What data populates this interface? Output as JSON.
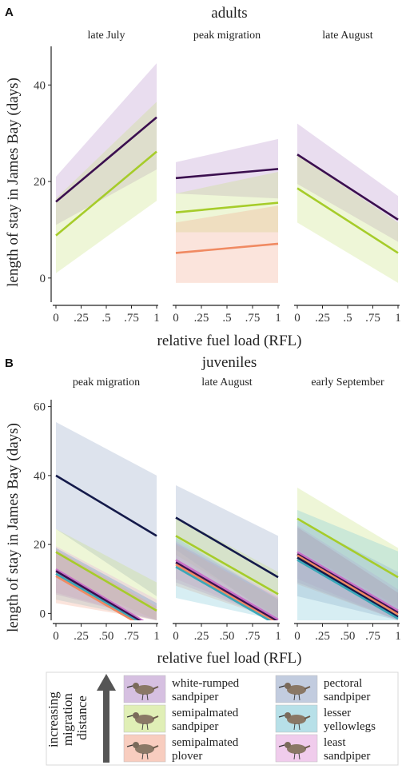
{
  "colors": {
    "white-rumped sandpiper": "#b58dc9",
    "semipalmated sandpiper": "#c7e27a",
    "semipalmated plover": "#f2a48a",
    "pectoral sandpiper": "#8fa3c4",
    "lesser yellowlegs": "#7cc6d6",
    "least sandpiper": "#e4a3dd",
    "line_white-rumped sandpiper": "#3b0f4f",
    "line_semipalmated sandpiper": "#a6cc2a",
    "line_semipalmated plover": "#f08a62",
    "line_pectoral sandpiper": "#141a4a",
    "line_lesser yellowlegs": "#3aa7b8",
    "line_least sandpiper": "#c970c7"
  },
  "panels": [
    {
      "letter": "A",
      "group_title": "adults",
      "ylabel": "length of stay in James Bay (days)",
      "xlabel": "relative fuel load (RFL)",
      "ylim": [
        -5,
        48
      ],
      "yticks": [
        0,
        20,
        40
      ],
      "ytick_labels": [
        "0",
        "20",
        "40"
      ],
      "xticks": [
        0,
        0.25,
        0.5,
        0.75,
        1
      ],
      "facets": [
        {
          "title": "late July",
          "xtick_labels": [
            "0",
            ".25",
            ".5",
            ".75",
            "1"
          ]
        },
        {
          "title": "peak migration",
          "xtick_labels": [
            "0",
            ".25",
            ".5",
            ".75",
            "1"
          ]
        },
        {
          "title": "late August",
          "xtick_labels": [
            "0",
            ".25",
            ".5",
            ".75",
            "1"
          ]
        }
      ]
    },
    {
      "letter": "B",
      "group_title": "juveniles",
      "ylabel": "length of stay in James Bay (days)",
      "xlabel": "relative fuel load (RFL)",
      "ylim": [
        -2,
        62
      ],
      "yticks": [
        0,
        20,
        40,
        60
      ],
      "ytick_labels": [
        "0",
        "20",
        "40",
        "60"
      ],
      "xticks": [
        0,
        0.25,
        0.5,
        0.75,
        1
      ],
      "facets": [
        {
          "title": "peak migration",
          "xtick_labels": [
            "0",
            ".25",
            ".50",
            ".75",
            "1"
          ]
        },
        {
          "title": "late August",
          "xtick_labels": [
            "0",
            ".25",
            ".50",
            ".75",
            "1"
          ]
        },
        {
          "title": "early September",
          "xtick_labels": [
            "0",
            ".25",
            ".50",
            ".75",
            "1"
          ]
        }
      ]
    }
  ],
  "chart_data": [
    {
      "type": "line",
      "panel": "A",
      "facets": [
        {
          "title": "late July",
          "series": [
            {
              "name": "white-rumped sandpiper",
              "x": [
                0,
                1
              ],
              "y": [
                15.8,
                33.3
              ],
              "lower": [
                11,
                22.5
              ],
              "upper": [
                21,
                44.5
              ]
            },
            {
              "name": "semipalmated sandpiper",
              "x": [
                0,
                1
              ],
              "y": [
                8.8,
                26.2
              ],
              "lower": [
                1,
                16
              ],
              "upper": [
                16.5,
                36.5
              ]
            }
          ]
        },
        {
          "title": "peak migration",
          "series": [
            {
              "name": "white-rumped sandpiper",
              "x": [
                0,
                1
              ],
              "y": [
                20.7,
                22.6
              ],
              "lower": [
                17.5,
                16.5
              ],
              "upper": [
                24,
                28.8
              ]
            },
            {
              "name": "semipalmated sandpiper",
              "x": [
                0,
                1
              ],
              "y": [
                13.6,
                15.6
              ],
              "lower": [
                9.5,
                9.5
              ],
              "upper": [
                17.5,
                22
              ]
            },
            {
              "name": "semipalmated plover",
              "x": [
                0,
                1
              ],
              "y": [
                5.2,
                7.1
              ],
              "lower": [
                -1,
                -1
              ],
              "upper": [
                11.5,
                15
              ]
            }
          ]
        },
        {
          "title": "late August",
          "series": [
            {
              "name": "white-rumped sandpiper",
              "x": [
                0,
                1
              ],
              "y": [
                25.6,
                12.1
              ],
              "lower": [
                19.5,
                7.5
              ],
              "upper": [
                32,
                17
              ]
            },
            {
              "name": "semipalmated sandpiper",
              "x": [
                0,
                1
              ],
              "y": [
                18.6,
                5.2
              ],
              "lower": [
                11.5,
                -1
              ],
              "upper": [
                25.5,
                11.5
              ]
            }
          ]
        }
      ]
    },
    {
      "type": "line",
      "panel": "B",
      "facets": [
        {
          "title": "peak migration",
          "series": [
            {
              "name": "pectoral sandpiper",
              "x": [
                0,
                1
              ],
              "y": [
                40,
                22.5
              ],
              "lower": [
                24.5,
                5
              ],
              "upper": [
                55.5,
                40
              ]
            },
            {
              "name": "semipalmated sandpiper",
              "x": [
                0,
                1
              ],
              "y": [
                17.8,
                0.8
              ],
              "lower": [
                11,
                -2
              ],
              "upper": [
                24.5,
                9
              ]
            },
            {
              "name": "least sandpiper",
              "x": [
                0,
                1
              ],
              "y": [
                12.8,
                -4.5
              ],
              "lower": [
                6,
                -2
              ],
              "upper": [
                19.5,
                4
              ]
            },
            {
              "name": "white-rumped sandpiper",
              "x": [
                0,
                1
              ],
              "y": [
                12.3,
                -5
              ],
              "lower": [
                5.5,
                -2
              ],
              "upper": [
                19,
                3
              ]
            },
            {
              "name": "lesser yellowlegs",
              "x": [
                0,
                1
              ],
              "y": [
                11.5,
                -5.5
              ],
              "lower": [
                4,
                -2
              ],
              "upper": [
                19,
                3
              ]
            },
            {
              "name": "semipalmated plover",
              "x": [
                0,
                1
              ],
              "y": [
                10.8,
                -6
              ],
              "lower": [
                3,
                -2
              ],
              "upper": [
                18.5,
                2
              ]
            }
          ]
        },
        {
          "title": "late August",
          "series": [
            {
              "name": "pectoral sandpiper",
              "x": [
                0,
                1
              ],
              "y": [
                27.8,
                10.5
              ],
              "lower": [
                18.5,
                -2
              ],
              "upper": [
                37.2,
                22.5
              ]
            },
            {
              "name": "semipalmated sandpiper",
              "x": [
                0,
                1
              ],
              "y": [
                22.5,
                5.6
              ],
              "lower": [
                17,
                -1
              ],
              "upper": [
                28,
                12
              ]
            },
            {
              "name": "least sandpiper",
              "x": [
                0,
                1
              ],
              "y": [
                15.5,
                -1.8
              ],
              "lower": [
                10,
                -2
              ],
              "upper": [
                21,
                5
              ]
            },
            {
              "name": "white-rumped sandpiper",
              "x": [
                0,
                1
              ],
              "y": [
                14.8,
                -2.4
              ],
              "lower": [
                9,
                -2
              ],
              "upper": [
                20.5,
                4.5
              ]
            },
            {
              "name": "semipalmated plover",
              "x": [
                0,
                1
              ],
              "y": [
                14.2,
                -3
              ],
              "lower": [
                8,
                -2
              ],
              "upper": [
                20,
                4
              ]
            },
            {
              "name": "lesser yellowlegs",
              "x": [
                0,
                1
              ],
              "y": [
                13.5,
                -3.5
              ],
              "lower": [
                4.5,
                -2
              ],
              "upper": [
                22,
                4
              ]
            }
          ]
        },
        {
          "title": "early September",
          "series": [
            {
              "name": "semipalmated sandpiper",
              "x": [
                0,
                1
              ],
              "y": [
                27.5,
                10.5
              ],
              "lower": [
                18.5,
                2
              ],
              "upper": [
                36.5,
                19
              ]
            },
            {
              "name": "least sandpiper",
              "x": [
                0,
                1
              ],
              "y": [
                17.8,
                0.8
              ],
              "lower": [
                10,
                -2
              ],
              "upper": [
                25.5,
                7
              ]
            },
            {
              "name": "white-rumped sandpiper",
              "x": [
                0,
                1
              ],
              "y": [
                17.2,
                0.2
              ],
              "lower": [
                9,
                -2
              ],
              "upper": [
                25,
                6
              ]
            },
            {
              "name": "semipalmated plover",
              "x": [
                0,
                1
              ],
              "y": [
                16.8,
                -0.3
              ],
              "lower": [
                8.5,
                -2
              ],
              "upper": [
                25,
                6
              ]
            },
            {
              "name": "pectoral sandpiper",
              "x": [
                0,
                1
              ],
              "y": [
                16.2,
                -1
              ],
              "lower": [
                5,
                -2
              ],
              "upper": [
                27,
                12
              ]
            },
            {
              "name": "lesser yellowlegs",
              "x": [
                0,
                1
              ],
              "y": [
                15.5,
                -1.5
              ],
              "lower": [
                -2,
                -2
              ],
              "upper": [
                30,
                18
              ]
            }
          ]
        }
      ]
    }
  ],
  "legend": {
    "arrow_label_lines": [
      "increasing",
      "migration",
      "distance"
    ],
    "items": [
      {
        "key": "white-rumped sandpiper",
        "lines": [
          "white-rumped",
          "sandpiper"
        ],
        "icon": "white-rumped-sandpiper-icon"
      },
      {
        "key": "semipalmated sandpiper",
        "lines": [
          "semipalmated",
          "sandpiper"
        ],
        "icon": "semipalmated-sandpiper-icon"
      },
      {
        "key": "semipalmated plover",
        "lines": [
          "semipalmated",
          "plover"
        ],
        "icon": "semipalmated-plover-icon"
      },
      {
        "key": "pectoral sandpiper",
        "lines": [
          "pectoral",
          "sandpiper"
        ],
        "icon": "pectoral-sandpiper-icon"
      },
      {
        "key": "lesser yellowlegs",
        "lines": [
          "lesser",
          "yellowlegs"
        ],
        "icon": "lesser-yellowlegs-icon"
      },
      {
        "key": "least sandpiper",
        "lines": [
          "least",
          "sandpiper"
        ],
        "icon": "least-sandpiper-icon"
      }
    ]
  }
}
